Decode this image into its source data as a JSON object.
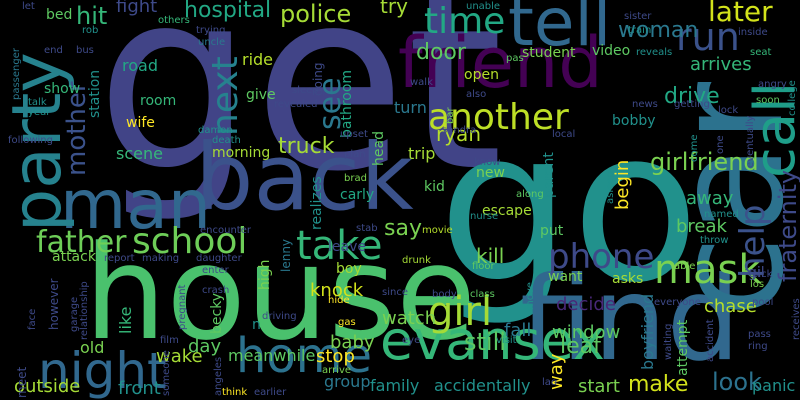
{
  "cloud": {
    "background": "#000000",
    "words": [
      {
        "text": "get",
        "color": "#414487"
      },
      {
        "text": "go",
        "color": "#21918c"
      },
      {
        "text": "house",
        "color": "#4ac16d"
      },
      {
        "text": "find",
        "color": "#31688e"
      },
      {
        "text": "car",
        "color": "#2c728e"
      },
      {
        "text": "back",
        "color": "#3b528b"
      },
      {
        "text": "man",
        "color": "#31688e"
      },
      {
        "text": "friend",
        "color": "#440154"
      },
      {
        "text": "tell",
        "color": "#31688e"
      },
      {
        "text": "party",
        "color": "#26828e"
      },
      {
        "text": "call",
        "color": "#1f9e89"
      },
      {
        "text": "night",
        "color": "#31688e"
      },
      {
        "text": "home",
        "color": "#2c728e"
      },
      {
        "text": "evansex",
        "color": "#35b779"
      },
      {
        "text": "school",
        "color": "#6ece58"
      },
      {
        "text": "father",
        "color": "#6ece58"
      },
      {
        "text": "take",
        "color": "#35b779"
      },
      {
        "text": "mask",
        "color": "#7ad151"
      },
      {
        "text": "phone",
        "color": "#3e4a89"
      },
      {
        "text": "girl",
        "color": "#a5db36"
      },
      {
        "text": "another",
        "color": "#bddf26"
      },
      {
        "text": "time",
        "color": "#22a884"
      },
      {
        "text": "run",
        "color": "#3b528b"
      },
      {
        "text": "later",
        "color": "#d2e21b"
      },
      {
        "text": "help",
        "color": "#3b528b"
      },
      {
        "text": "next",
        "color": "#26828e"
      },
      {
        "text": "see",
        "color": "#2a788e"
      },
      {
        "text": "mother",
        "color": "#3b528b"
      },
      {
        "text": "police",
        "color": "#a5db36"
      },
      {
        "text": "hospital",
        "color": "#22a884"
      },
      {
        "text": "hit",
        "color": "#35b779"
      },
      {
        "text": "fight",
        "color": "#3e4a89"
      },
      {
        "text": "try",
        "color": "#a5db36"
      },
      {
        "text": "woman",
        "color": "#2a788e"
      },
      {
        "text": "fraternity",
        "color": "#3e4a89"
      },
      {
        "text": "girlfriend",
        "color": "#7ad151"
      },
      {
        "text": "look",
        "color": "#2c728e"
      },
      {
        "text": "make",
        "color": "#d2e21b"
      },
      {
        "text": "still",
        "color": "#5ec962"
      },
      {
        "text": "leaf",
        "color": "#5ec962"
      },
      {
        "text": "drive",
        "color": "#22a884"
      },
      {
        "text": "truck",
        "color": "#a5db36"
      },
      {
        "text": "say",
        "color": "#7ad151"
      },
      {
        "text": "door",
        "color": "#5ec962"
      },
      {
        "text": "ryan",
        "color": "#b5de2b"
      },
      {
        "text": "arrives",
        "color": "#35b779"
      },
      {
        "text": "break",
        "color": "#5ec962"
      },
      {
        "text": "away",
        "color": "#35b779"
      },
      {
        "text": "kill",
        "color": "#7ad151"
      },
      {
        "text": "knock",
        "color": "#d2e21b"
      },
      {
        "text": "baby",
        "color": "#7ad151"
      },
      {
        "text": "stop",
        "color": "#fde725"
      },
      {
        "text": "meanwhile",
        "color": "#5ec962"
      },
      {
        "text": "group",
        "color": "#2a788e"
      },
      {
        "text": "watch",
        "color": "#7ad151"
      },
      {
        "text": "fall",
        "color": "#2a788e"
      },
      {
        "text": "decide",
        "color": "#482878"
      },
      {
        "text": "window",
        "color": "#5ec962"
      },
      {
        "text": "start",
        "color": "#7ad151"
      },
      {
        "text": "chase",
        "color": "#b5de2b"
      },
      {
        "text": "panic",
        "color": "#21918c"
      },
      {
        "text": "family",
        "color": "#21918c"
      },
      {
        "text": "accidentally",
        "color": "#21918c"
      },
      {
        "text": "outside",
        "color": "#a5db36"
      },
      {
        "text": "front",
        "color": "#21918c"
      },
      {
        "text": "wake",
        "color": "#a5db36"
      },
      {
        "text": "day",
        "color": "#5ec962"
      },
      {
        "text": "old",
        "color": "#7ad151"
      },
      {
        "text": "scene",
        "color": "#35b779"
      },
      {
        "text": "morning",
        "color": "#a5db36"
      },
      {
        "text": "road",
        "color": "#22a884"
      },
      {
        "text": "ride",
        "color": "#b5de2b"
      },
      {
        "text": "give",
        "color": "#5ec962"
      },
      {
        "text": "room",
        "color": "#35b779"
      },
      {
        "text": "show",
        "color": "#35b779"
      },
      {
        "text": "bed",
        "color": "#5ec962"
      },
      {
        "text": "station",
        "color": "#21918c"
      },
      {
        "text": "student",
        "color": "#7ad151"
      },
      {
        "text": "video",
        "color": "#5ec962"
      },
      {
        "text": "open",
        "color": "#b5de2b"
      },
      {
        "text": "bobby",
        "color": "#21918c"
      },
      {
        "text": "turn",
        "color": "#2a788e"
      },
      {
        "text": "trip",
        "color": "#a5db36"
      },
      {
        "text": "new",
        "color": "#7ad151"
      },
      {
        "text": "kid",
        "color": "#5ec962"
      },
      {
        "text": "escape",
        "color": "#a5db36"
      },
      {
        "text": "put",
        "color": "#5ec962"
      },
      {
        "text": "want",
        "color": "#7ad151"
      },
      {
        "text": "asks",
        "color": "#a5db36"
      },
      {
        "text": "begin",
        "color": "#fde725"
      },
      {
        "text": "boyfriend",
        "color": "#2a788e"
      },
      {
        "text": "attempt",
        "color": "#5ec962"
      },
      {
        "text": "carly",
        "color": "#22a884"
      },
      {
        "text": "boy",
        "color": "#a5db36"
      },
      {
        "text": "attack",
        "color": "#7ad151"
      },
      {
        "text": "leave",
        "color": "#3e4a89"
      },
      {
        "text": "high",
        "color": "#7ad151"
      },
      {
        "text": "like",
        "color": "#35b779"
      },
      {
        "text": "becky",
        "color": "#5ec962"
      },
      {
        "text": "wife",
        "color": "#fde725"
      },
      {
        "text": "bathroom",
        "color": "#22a884"
      },
      {
        "text": "realizes",
        "color": "#21918c"
      },
      {
        "text": "parent",
        "color": "#21918c"
      },
      {
        "text": "way",
        "color": "#fde725"
      },
      {
        "text": "head",
        "color": "#5ec962"
      },
      {
        "text": "gil",
        "color": "#3e4a89"
      },
      {
        "text": "lenny",
        "color": "#2a788e"
      },
      {
        "text": "going",
        "color": "#3e4a89"
      },
      {
        "text": "let",
        "color": "#3e4a89"
      },
      {
        "text": "others",
        "color": "#35b779"
      },
      {
        "text": "unable",
        "color": "#21918c"
      },
      {
        "text": "trying",
        "color": "#3e4a89"
      },
      {
        "text": "uncle",
        "color": "#2a788e"
      },
      {
        "text": "end",
        "color": "#3e4a89"
      },
      {
        "text": "bus",
        "color": "#3e4a89"
      },
      {
        "text": "rob",
        "color": "#21918c"
      },
      {
        "text": "inside",
        "color": "#3e4a89"
      },
      {
        "text": "train",
        "color": "#21918c"
      },
      {
        "text": "reveals",
        "color": "#21918c"
      },
      {
        "text": "seat",
        "color": "#35b779"
      },
      {
        "text": "angry",
        "color": "#3e4a89"
      },
      {
        "text": "soon",
        "color": "#5ec962"
      },
      {
        "text": "college",
        "color": "#21918c"
      },
      {
        "text": "getting",
        "color": "#3e4a89"
      },
      {
        "text": "lock",
        "color": "#3e4a89"
      },
      {
        "text": "news",
        "color": "#3e4a89"
      },
      {
        "text": "sister",
        "color": "#3e4a89"
      },
      {
        "text": "walk",
        "color": "#3e4a89"
      },
      {
        "text": "pas",
        "color": "#5ec962"
      },
      {
        "text": "also",
        "color": "#3e4a89"
      },
      {
        "text": "sleep",
        "color": "#3e4a89"
      },
      {
        "text": "revealed",
        "color": "#3e4a89"
      },
      {
        "text": "talk",
        "color": "#21918c"
      },
      {
        "text": "year",
        "color": "#21918c"
      },
      {
        "text": "passenger",
        "color": "#2a788e"
      },
      {
        "text": "following",
        "color": "#3e4a89"
      },
      {
        "text": "damon",
        "color": "#21918c"
      },
      {
        "text": "death",
        "color": "#21918c"
      },
      {
        "text": "upset",
        "color": "#3e4a89"
      },
      {
        "text": "plan",
        "color": "#3e4a89"
      },
      {
        "text": "brad",
        "color": "#7ad151"
      },
      {
        "text": "bar",
        "color": "#7ad151"
      },
      {
        "text": "sandra",
        "color": "#3e4a89"
      },
      {
        "text": "local",
        "color": "#3e4a89"
      },
      {
        "text": "know",
        "color": "#3e4a89"
      },
      {
        "text": "along",
        "color": "#5ec962"
      },
      {
        "text": "nurse",
        "color": "#21918c"
      },
      {
        "text": "asleep",
        "color": "#21918c"
      },
      {
        "text": "come",
        "color": "#21918c"
      },
      {
        "text": "one",
        "color": "#3e4a89"
      },
      {
        "text": "named",
        "color": "#21918c"
      },
      {
        "text": "throw",
        "color": "#21918c"
      },
      {
        "text": "eventually",
        "color": "#3e4a89"
      },
      {
        "text": "pick",
        "color": "#3e4a89"
      },
      {
        "text": "los",
        "color": "#7ad151"
      },
      {
        "text": "pool",
        "color": "#3e4a89"
      },
      {
        "text": "receives",
        "color": "#3e4a89"
      },
      {
        "text": "pass",
        "color": "#3e4a89"
      },
      {
        "text": "ring",
        "color": "#3e4a89"
      },
      {
        "text": "accident",
        "color": "#3e4a89"
      },
      {
        "text": "waiting",
        "color": "#3e4a89"
      },
      {
        "text": "everyone",
        "color": "#3e4a89"
      },
      {
        "text": "able",
        "color": "#7ad151"
      },
      {
        "text": "class",
        "color": "#5ec962"
      },
      {
        "text": "visit",
        "color": "#21918c"
      },
      {
        "text": "move",
        "color": "#21918c"
      },
      {
        "text": "body",
        "color": "#3e4a89"
      },
      {
        "text": "since",
        "color": "#3e4a89"
      },
      {
        "text": "floor",
        "color": "#5ec962"
      },
      {
        "text": "drunk",
        "color": "#a5db36"
      },
      {
        "text": "movie",
        "color": "#b5de2b"
      },
      {
        "text": "stab",
        "color": "#3e4a89"
      },
      {
        "text": "eye",
        "color": "#3e4a89"
      },
      {
        "text": "gas",
        "color": "#fde725"
      },
      {
        "text": "hide",
        "color": "#fde725"
      },
      {
        "text": "arrive",
        "color": "#7ad151"
      },
      {
        "text": "driving",
        "color": "#3e4a89"
      },
      {
        "text": "enter",
        "color": "#3e4a89"
      },
      {
        "text": "daughter",
        "color": "#3e4a89"
      },
      {
        "text": "making",
        "color": "#3e4a89"
      },
      {
        "text": "report",
        "color": "#3e4a89"
      },
      {
        "text": "encounter",
        "color": "#3e4a89"
      },
      {
        "text": "pregnant",
        "color": "#3e4a89"
      },
      {
        "text": "relationship",
        "color": "#3e4a89"
      },
      {
        "text": "however",
        "color": "#3e4a89"
      },
      {
        "text": "garage",
        "color": "#3e4a89"
      },
      {
        "text": "face",
        "color": "#3e4a89"
      },
      {
        "text": "meet",
        "color": "#3e4a89"
      },
      {
        "text": "film",
        "color": "#3e4a89"
      },
      {
        "text": "crash",
        "color": "#3e4a89"
      },
      {
        "text": "angeles",
        "color": "#3e4a89"
      },
      {
        "text": "someone",
        "color": "#3e4a89"
      },
      {
        "text": "think",
        "color": "#fde725"
      },
      {
        "text": "earlier",
        "color": "#3e4a89"
      },
      {
        "text": "lao",
        "color": "#3e4a89"
      },
      {
        "text": "n",
        "color": "#21918c"
      }
    ]
  }
}
